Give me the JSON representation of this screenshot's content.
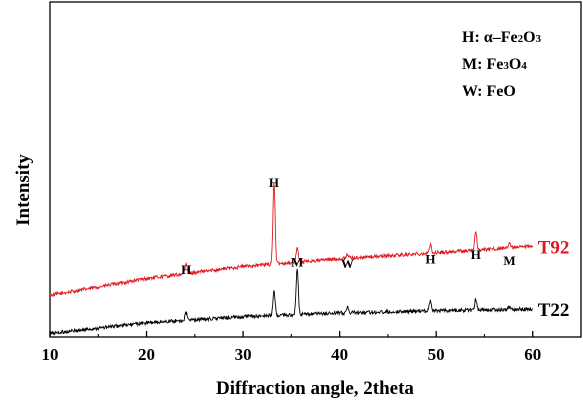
{
  "chart_data": {
    "type": "line",
    "xlabel": "Diffraction angle, 2theta",
    "ylabel": "Intensity",
    "xlim": [
      10,
      65
    ],
    "x_ticks": [
      "10",
      "20",
      "30",
      "40",
      "50",
      "60"
    ],
    "x_minor_step": 5,
    "y_ticks_shown": false,
    "grid": false,
    "legend_position": "top-right",
    "legend": [
      {
        "letter": "H",
        "sep": ": ",
        "phase": "α–Fe",
        "sub1": "2",
        "mid": "O",
        "sub2": "3"
      },
      {
        "letter": "M",
        "sep": ": ",
        "phase": "Fe",
        "sub1": "3",
        "mid": "O",
        "sub2": "4"
      },
      {
        "letter": "W",
        "sep": ": ",
        "phase": "FeO",
        "sub1": "",
        "mid": "",
        "sub2": ""
      }
    ],
    "series": [
      {
        "name": "T92",
        "color": "#e0191f",
        "baseline": [
          [
            10,
            0.13
          ],
          [
            20,
            0.185
          ],
          [
            30,
            0.225
          ],
          [
            40,
            0.25
          ],
          [
            50,
            0.27
          ],
          [
            60,
            0.29
          ]
        ],
        "noise": 0.012,
        "peaks": [
          {
            "x": 24.1,
            "height": 0.03
          },
          {
            "x": 33.2,
            "height": 0.27
          },
          {
            "x": 35.6,
            "height": 0.05
          },
          {
            "x": 40.8,
            "height": 0.015
          },
          {
            "x": 49.4,
            "height": 0.025
          },
          {
            "x": 54.1,
            "height": 0.06
          },
          {
            "x": 57.6,
            "height": 0.02
          }
        ]
      },
      {
        "name": "T22",
        "color": "#000000",
        "baseline": [
          [
            10,
            0.005
          ],
          [
            20,
            0.04
          ],
          [
            30,
            0.06
          ],
          [
            40,
            0.072
          ],
          [
            50,
            0.08
          ],
          [
            60,
            0.085
          ]
        ],
        "noise": 0.012,
        "peaks": [
          {
            "x": 24.1,
            "height": 0.025
          },
          {
            "x": 33.2,
            "height": 0.08
          },
          {
            "x": 35.6,
            "height": 0.15
          },
          {
            "x": 40.8,
            "height": 0.02
          },
          {
            "x": 49.4,
            "height": 0.035
          },
          {
            "x": 54.1,
            "height": 0.035
          },
          {
            "x": 57.6,
            "height": 0.01
          }
        ]
      }
    ],
    "peak_labels": [
      {
        "text": "H",
        "x": 24.1,
        "level": 0.2
      },
      {
        "text": "H",
        "x": 33.2,
        "level": 0.485
      },
      {
        "text": "M",
        "x": 35.6,
        "level": 0.225
      },
      {
        "text": "W",
        "x": 40.8,
        "level": 0.22
      },
      {
        "text": "H",
        "x": 49.4,
        "level": 0.235
      },
      {
        "text": "H",
        "x": 54.1,
        "level": 0.25
      },
      {
        "text": "M",
        "x": 57.6,
        "level": 0.23
      }
    ]
  }
}
